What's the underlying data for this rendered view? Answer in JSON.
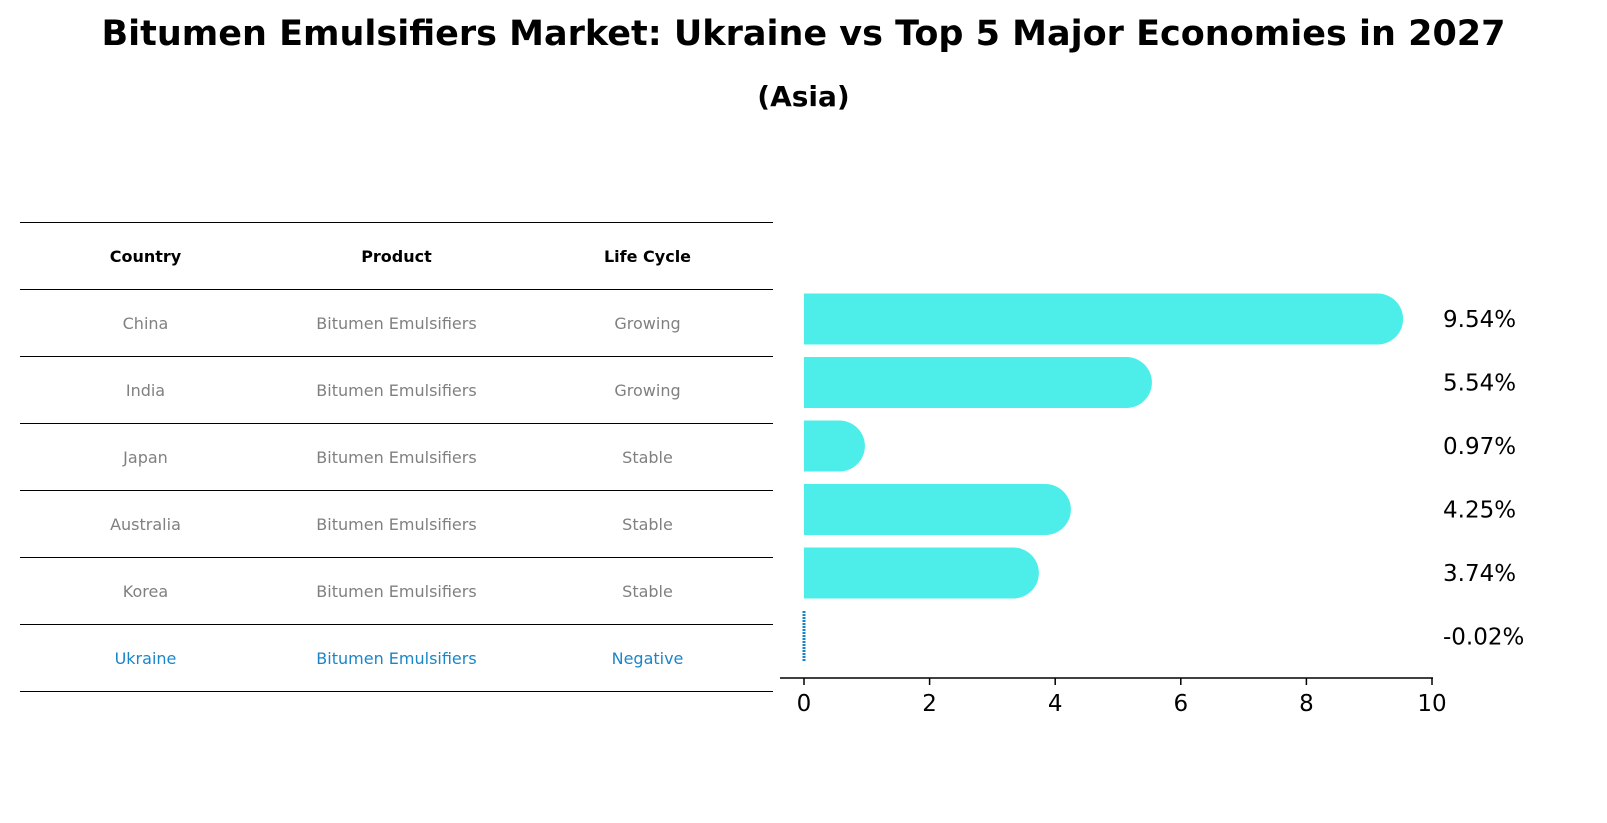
{
  "title": "Bitumen Emulsifiers Market: Ukraine vs Top 5 Major Economies in 2027",
  "subtitle": "(Asia)",
  "table": {
    "headers": [
      "Country",
      "Product",
      "Life Cycle"
    ],
    "rows": [
      [
        "China",
        "Bitumen Emulsifiers",
        "Growing"
      ],
      [
        "India",
        "Bitumen Emulsifiers",
        "Growing"
      ],
      [
        "Japan",
        "Bitumen Emulsifiers",
        "Stable"
      ],
      [
        "Australia",
        "Bitumen Emulsifiers",
        "Stable"
      ],
      [
        "Korea",
        "Bitumen Emulsifiers",
        "Stable"
      ],
      [
        "Ukraine",
        "Bitumen Emulsifiers",
        "Negative"
      ]
    ]
  },
  "colors": {
    "bar": "#4deeea",
    "highlight": "#1a86c8",
    "muted": "#808080"
  },
  "chart_data": {
    "type": "bar",
    "orientation": "horizontal",
    "categories": [
      "China",
      "India",
      "Japan",
      "Australia",
      "Korea",
      "Ukraine"
    ],
    "values": [
      9.54,
      5.54,
      0.97,
      4.25,
      3.74,
      -0.02
    ],
    "data_labels": [
      "9.54%",
      "5.54%",
      "0.97%",
      "4.25%",
      "3.74%",
      "-0.02%"
    ],
    "xlim": [
      0,
      10
    ],
    "xticks": [
      "0",
      "2",
      "4",
      "6",
      "8",
      "10"
    ],
    "xtick_values": [
      0,
      2,
      4,
      6,
      8,
      10
    ],
    "xlabel": "",
    "ylabel": "",
    "grid": false
  }
}
